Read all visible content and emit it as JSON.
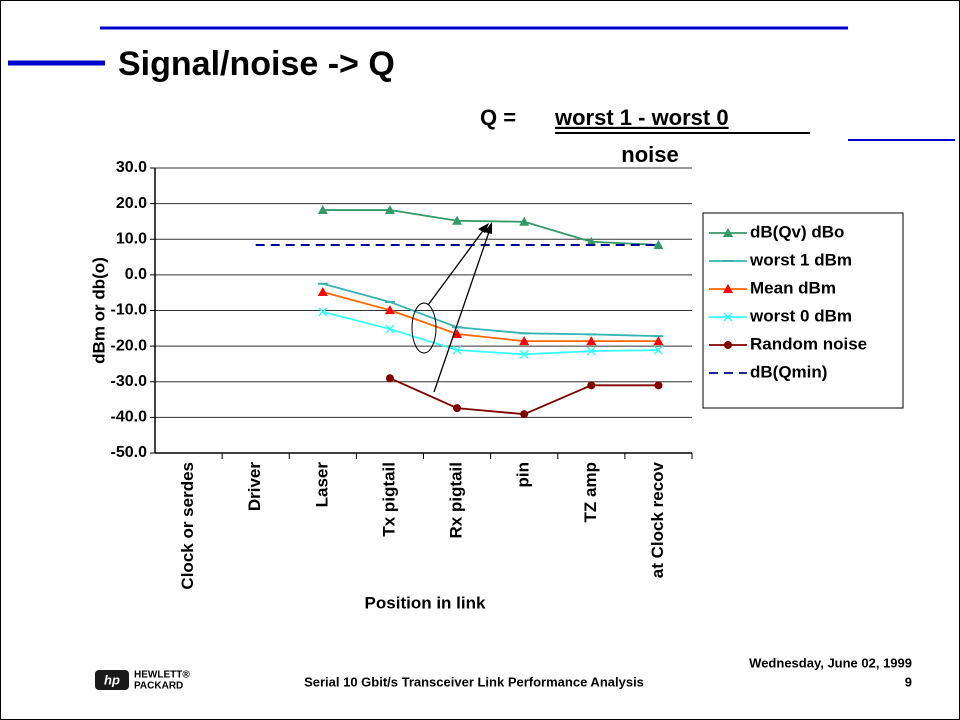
{
  "title": "Signal/noise -> Q",
  "formula": {
    "lhs": "Q =",
    "numerator": "worst 1 - worst 0",
    "denominator": "noise"
  },
  "footer": {
    "text": "Serial 10 Gbit/s Transceiver Link Performance Analysis",
    "date": "Wednesday, June 02, 1999",
    "page": "9"
  },
  "logo": {
    "mark": "hp",
    "line1": "HEWLETT®",
    "line2": "PACKARD"
  },
  "chart_data": {
    "type": "line",
    "xlabel": "Position in link",
    "ylabel": "dBm or db(o)",
    "categories": [
      "Clock or serdes",
      "Driver",
      "Laser",
      "Tx pigtail",
      "Rx pigtail",
      "pin",
      "TZ amp",
      "at Clock recov"
    ],
    "ylim": [
      -50,
      30
    ],
    "yticks": [
      {
        "value": 30,
        "label": "30.0"
      },
      {
        "value": 20,
        "label": "20.0"
      },
      {
        "value": 10,
        "label": "10.0"
      },
      {
        "value": 0,
        "label": "0.0"
      },
      {
        "value": -10,
        "label": "-10.0"
      },
      {
        "value": -20,
        "label": "-20.0"
      },
      {
        "value": -30,
        "label": "-30.0"
      },
      {
        "value": -40,
        "label": "-40.0"
      },
      {
        "value": -50,
        "label": "-50.0"
      }
    ],
    "grid": true,
    "legend": "right",
    "series": [
      {
        "name": "dB(Qv) dBo",
        "color": "#339966",
        "marker": "triangle",
        "values": [
          null,
          null,
          18.2,
          18.2,
          15.2,
          14.9,
          9.3,
          8.4
        ]
      },
      {
        "name": "worst 1 dBm",
        "color": "#33b5b5",
        "marker": "dash",
        "values": [
          null,
          null,
          -2.5,
          -7.6,
          -14.7,
          -16.4,
          -16.7,
          -17.2
        ]
      },
      {
        "name": "Mean dBm",
        "color": "#ff6600",
        "marker_color": "#ff0000",
        "marker": "triangle",
        "values": [
          null,
          null,
          -4.8,
          -9.9,
          -16.6,
          -18.6,
          -18.6,
          -18.6
        ]
      },
      {
        "name": "worst 0 dBm",
        "color": "#33ffff",
        "marker": "cross",
        "values": [
          null,
          null,
          -10.4,
          -15.2,
          -21.1,
          -22.3,
          -21.4,
          -21.1
        ]
      },
      {
        "name": "Random noise",
        "color": "#800000",
        "marker": "circle",
        "values": [
          null,
          null,
          null,
          -29,
          -37.4,
          -39.1,
          -31,
          -31
        ]
      },
      {
        "name": "dB(Qmin)",
        "color": "#000099",
        "marker": "none",
        "dashed": true,
        "values": [
          null,
          8.4,
          8.4,
          8.4,
          8.4,
          8.4,
          8.4,
          8.4
        ]
      }
    ]
  }
}
